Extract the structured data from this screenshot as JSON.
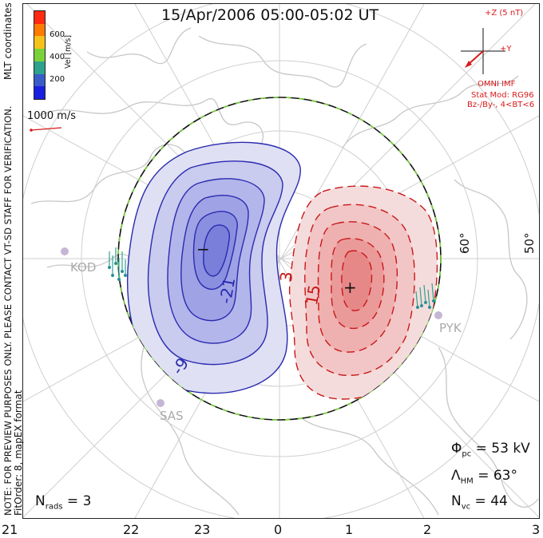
{
  "title": "15/Apr/2006 05:00-05:02 UT",
  "colorbar": {
    "ticks": [
      "600",
      "400",
      "200"
    ],
    "label": "Vel [m/s]",
    "colors": [
      "#ff2a10",
      "#ff7a00",
      "#f5c21a",
      "#7ad23a",
      "#2ea28e",
      "#3a5cc8",
      "#1a20e0"
    ]
  },
  "side_notes": {
    "mlt": "MLT coordinates",
    "preview": "NOTE: FOR PREVIEW PURPOSES ONLY. PLEASE CONTACT VT-SD STAFF FOR VERIFICATION.",
    "fit": "FitOrder: 8, mapEX format"
  },
  "scale_label": "1000 m/s",
  "imf": {
    "z_label": "+Z (5 nT)",
    "y_label": "+Y",
    "source": "OMNI IMF",
    "model": "Stat Mod: RG96",
    "condition": "Bz-/By-, 4<BT<6"
  },
  "lat_labels": [
    "60°",
    "50°"
  ],
  "stations": [
    "KOD",
    "PYK",
    "SAS"
  ],
  "contours": {
    "neg_label_1": "-21",
    "neg_label_2": "-9",
    "pos_label_1": "3",
    "pos_label_2": "15",
    "minus_sign": "−",
    "plus_sign": "+"
  },
  "stats": {
    "phi_sym": "Φ",
    "phi_sub": "pc",
    "phi_val": " = 53 kV",
    "lam_sym": "Λ",
    "lam_sub": "HM",
    "lam_val": " = 63°",
    "nvc_sym": "N",
    "nvc_sub": "vc",
    "nvc_val": " = 44",
    "nrads_sym": "N",
    "nrads_sub": "rads",
    "nrads_val": " = 3"
  },
  "x_axis": [
    "21",
    "22",
    "23",
    "0",
    "1",
    "2",
    "3"
  ]
}
